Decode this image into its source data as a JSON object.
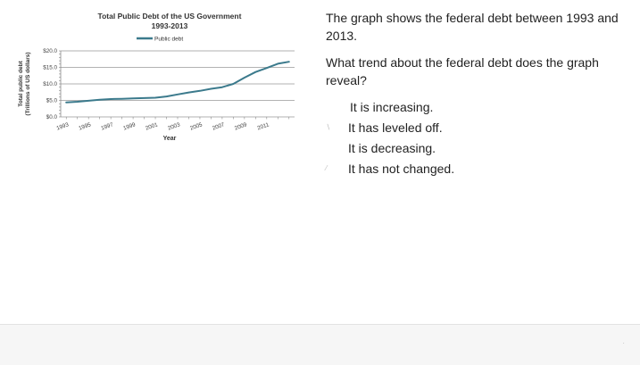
{
  "chart_data": {
    "type": "line",
    "title": "Total Public Debt of the US Government",
    "subtitle": "1993-2013",
    "xlabel": "Year",
    "ylabel_line1": "Total public debt",
    "ylabel_line2": "(Trillions of US dollars)",
    "legend": "top",
    "series": [
      {
        "name": "Public debt",
        "color": "#3b7a8c",
        "x": [
          1993,
          1994,
          1995,
          1996,
          1997,
          1998,
          1999,
          2000,
          2001,
          2002,
          2003,
          2004,
          2005,
          2006,
          2007,
          2008,
          2009,
          2010,
          2011,
          2012,
          2013
        ],
        "values": [
          4.4,
          4.6,
          4.9,
          5.2,
          5.4,
          5.5,
          5.6,
          5.7,
          5.8,
          6.2,
          6.8,
          7.4,
          7.9,
          8.5,
          9.0,
          10.0,
          11.9,
          13.6,
          14.8,
          16.1,
          16.7
        ]
      }
    ],
    "x_ticks": [
      "1993",
      "1995",
      "1997",
      "1999",
      "2001",
      "2003",
      "2005",
      "2007",
      "2009",
      "2011"
    ],
    "y_ticks": [
      "$0.0",
      "$5.0",
      "$10.0",
      "$15.0",
      "$20.0"
    ],
    "y_tick_values": [
      0,
      5,
      10,
      15,
      20
    ],
    "ylim": [
      0,
      20
    ],
    "grid": true
  },
  "question": {
    "line1": "The graph shows the federal debt between 1993 and 2013.",
    "line2": "What trend about the federal debt does the graph reveal?"
  },
  "options": [
    {
      "label": "It is increasing."
    },
    {
      "label": "It has leveled off."
    },
    {
      "label": "It is decreasing."
    },
    {
      "label": "It has not changed."
    }
  ]
}
